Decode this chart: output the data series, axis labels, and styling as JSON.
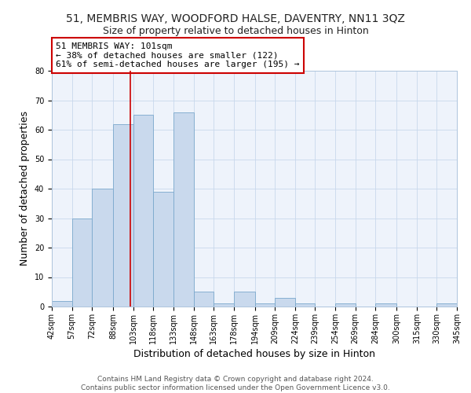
{
  "title": "51, MEMBRIS WAY, WOODFORD HALSE, DAVENTRY, NN11 3QZ",
  "subtitle": "Size of property relative to detached houses in Hinton",
  "xlabel": "Distribution of detached houses by size in Hinton",
  "ylabel": "Number of detached properties",
  "bar_edges": [
    42,
    57,
    72,
    88,
    103,
    118,
    133,
    148,
    163,
    178,
    194,
    209,
    224,
    239,
    254,
    269,
    284,
    300,
    315,
    330,
    345
  ],
  "bar_heights": [
    2,
    30,
    40,
    62,
    65,
    39,
    66,
    5,
    1,
    5,
    1,
    3,
    1,
    0,
    1,
    0,
    1,
    0,
    0,
    1,
    0
  ],
  "bar_color": "#c9d9ed",
  "bar_edge_color": "#7aa8cc",
  "property_line_x": 101,
  "property_line_color": "#cc0000",
  "annotation_text": "51 MEMBRIS WAY: 101sqm\n← 38% of detached houses are smaller (122)\n61% of semi-detached houses are larger (195) →",
  "annotation_box_edge_color": "#cc0000",
  "ylim": [
    0,
    80
  ],
  "yticks": [
    0,
    10,
    20,
    30,
    40,
    50,
    60,
    70,
    80
  ],
  "tick_labels": [
    "42sqm",
    "57sqm",
    "72sqm",
    "88sqm",
    "103sqm",
    "118sqm",
    "133sqm",
    "148sqm",
    "163sqm",
    "178sqm",
    "194sqm",
    "209sqm",
    "224sqm",
    "239sqm",
    "254sqm",
    "269sqm",
    "284sqm",
    "300sqm",
    "315sqm",
    "330sqm",
    "345sqm"
  ],
  "footer_line1": "Contains HM Land Registry data © Crown copyright and database right 2024.",
  "footer_line2": "Contains public sector information licensed under the Open Government Licence v3.0.",
  "fig_bg_color": "#ffffff",
  "plot_bg_color": "#eef3fb",
  "grid_color": "#c8d8ec",
  "title_fontsize": 10,
  "subtitle_fontsize": 9,
  "axis_label_fontsize": 9,
  "tick_fontsize": 7,
  "footer_fontsize": 6.5,
  "annotation_fontsize": 8
}
